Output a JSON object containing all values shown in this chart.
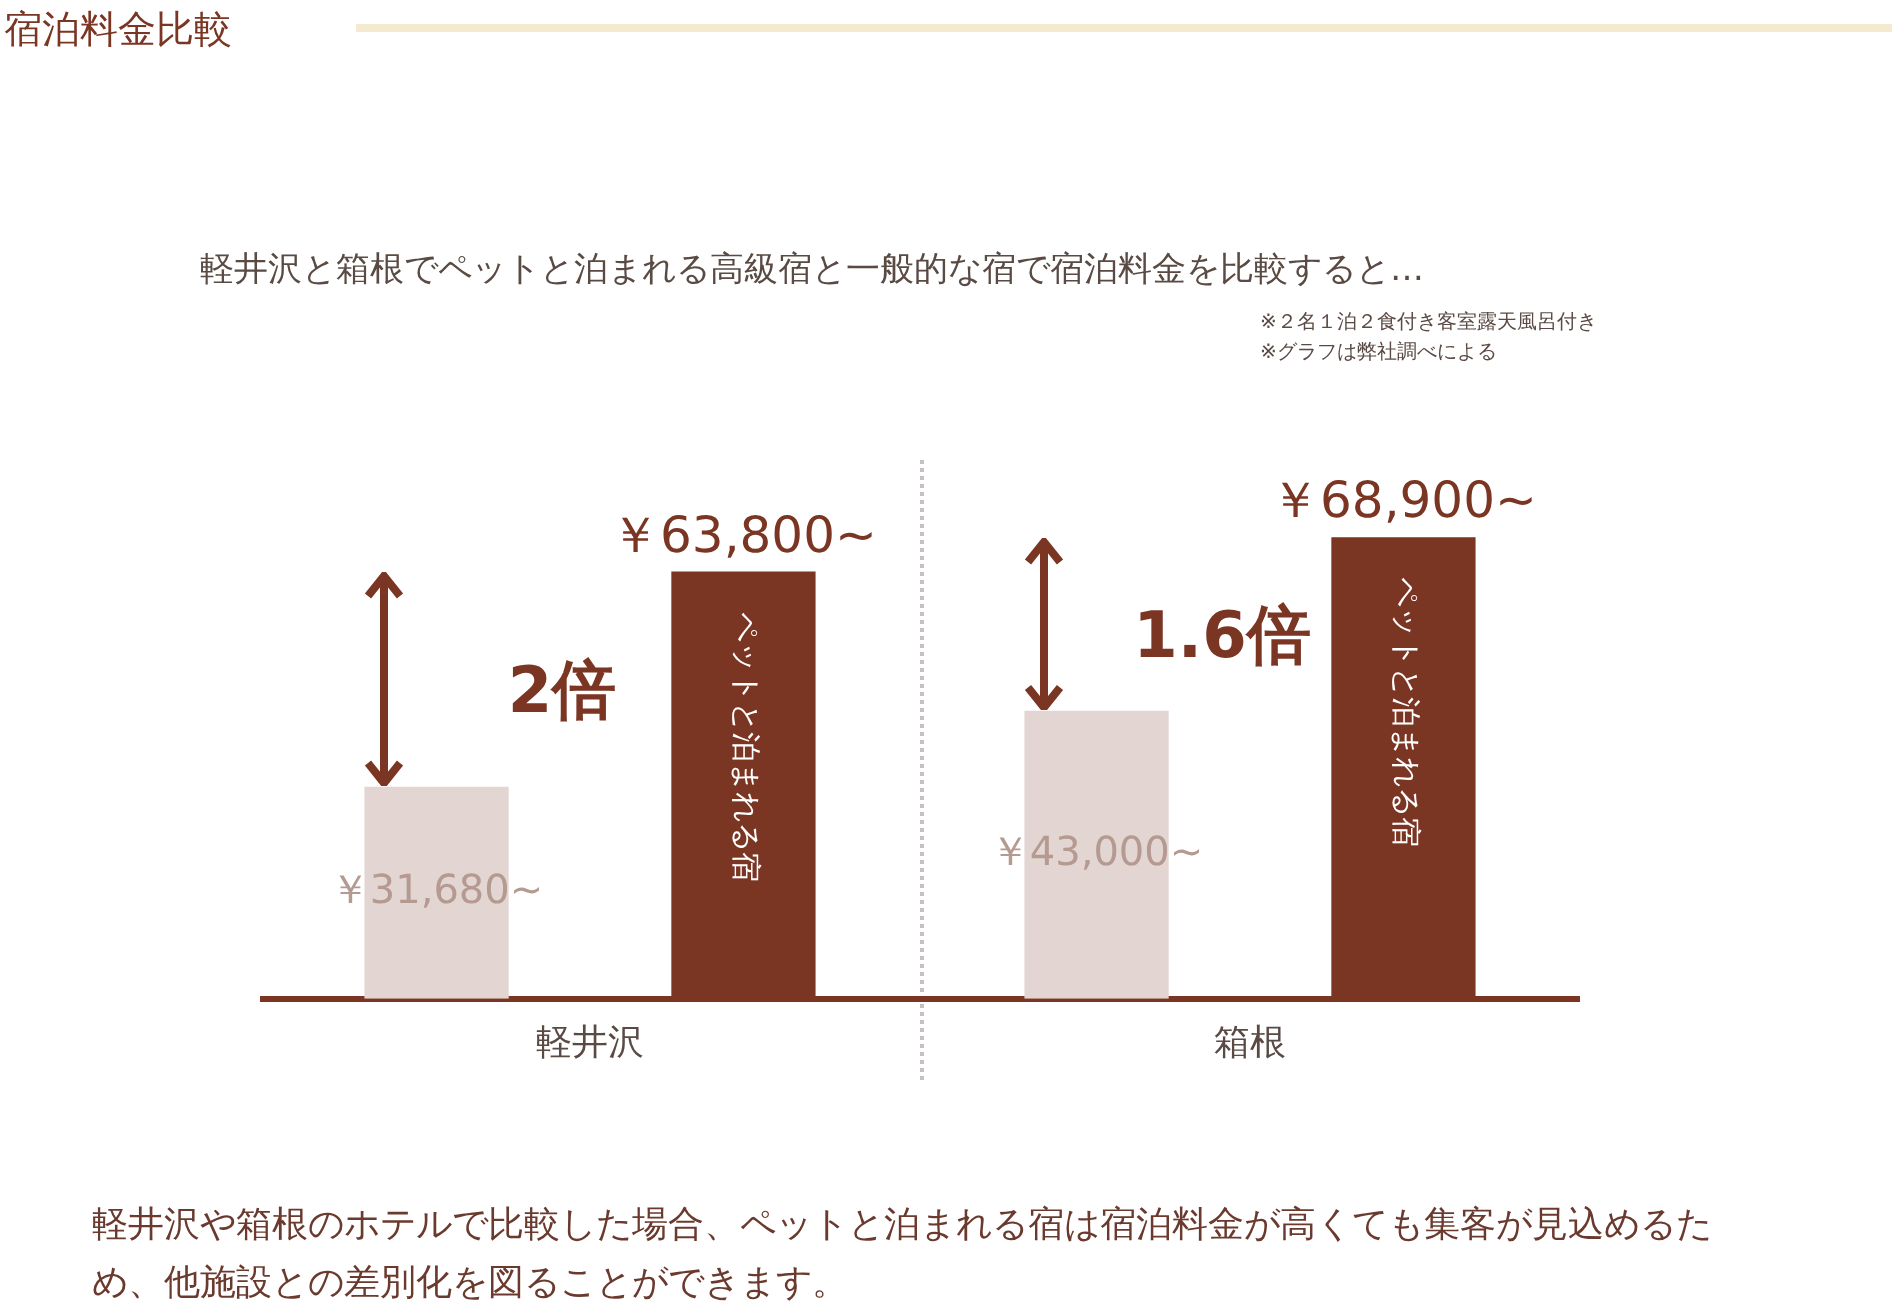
{
  "chart_data": {
    "type": "bar",
    "title": "宿泊料金比較",
    "subtitle": "軽井沢と箱根でペットと泊まれる高級宿と一般的な宿で宿泊料金を比較すると…",
    "categories": [
      "軽井沢",
      "箱根"
    ],
    "series": [
      {
        "color": "#e3d6d2",
        "values": [
          31680,
          43000
        ],
        "value_labels": [
          "￥31,680~",
          "￥43,000~"
        ]
      },
      {
        "name": "ペットと泊まれる宿",
        "color": "#7b3523",
        "values": [
          63800,
          68900
        ],
        "value_labels": [
          "￥63,800~",
          "￥68,900~"
        ]
      }
    ],
    "annotations": [
      "2倍",
      "1.6倍",
      "※２名１泊２食付き客室露天風呂付き",
      "※グラフは弊社調べによる",
      "軽井沢や箱根のホテルで比較した場合、ペットと泊まれる宿は宿泊料金が高くても集客が見込めるため、他施設との差別化を図ることができます。"
    ],
    "legend": false,
    "grid": false
  }
}
